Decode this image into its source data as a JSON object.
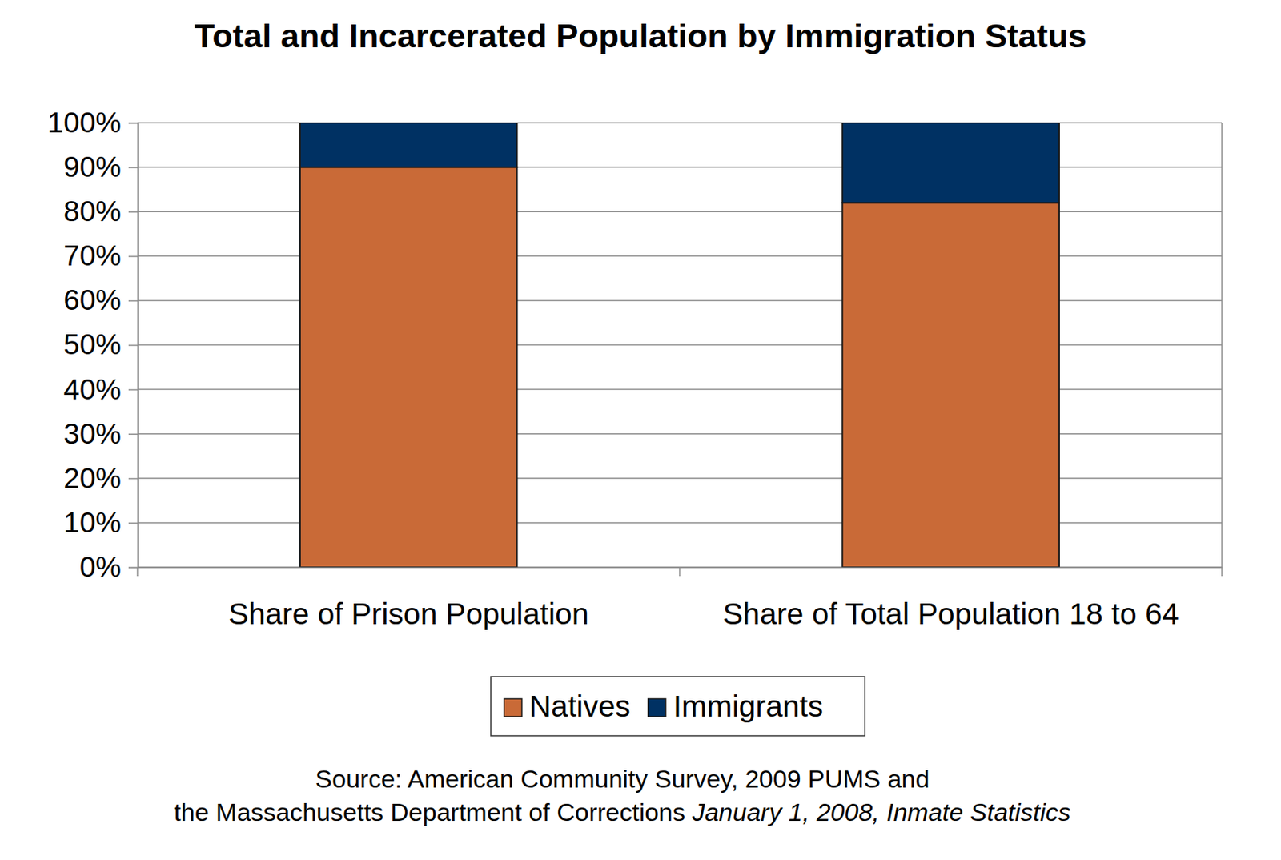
{
  "chart_data": {
    "type": "bar",
    "title": "Total and Incarcerated Population by Immigration Status",
    "categories": [
      "Share of Prison Population",
      "Share of Total Population 18 to 64"
    ],
    "series": [
      {
        "name": "Natives",
        "color": "#c96a37",
        "values": [
          90,
          82
        ]
      },
      {
        "name": "Immigrants",
        "color": "#003163",
        "values": [
          10,
          18
        ]
      }
    ],
    "stacked": true,
    "ylim": [
      0,
      100
    ],
    "yticks": [
      {
        "value": 0,
        "label": "0%"
      },
      {
        "value": 10,
        "label": "10%"
      },
      {
        "value": 20,
        "label": "20%"
      },
      {
        "value": 30,
        "label": "30%"
      },
      {
        "value": 40,
        "label": "40%"
      },
      {
        "value": 50,
        "label": "50%"
      },
      {
        "value": 60,
        "label": "60%"
      },
      {
        "value": 70,
        "label": "70%"
      },
      {
        "value": 80,
        "label": "80%"
      },
      {
        "value": 90,
        "label": "90%"
      },
      {
        "value": 100,
        "label": "100%"
      }
    ],
    "grid": true,
    "legend": "bottom",
    "annotations": [
      "Source: American Community Survey, 2009 PUMS and",
      "the Massachusetts Department of Corrections ",
      "January 1, 2008, Inmate Statistics"
    ]
  }
}
